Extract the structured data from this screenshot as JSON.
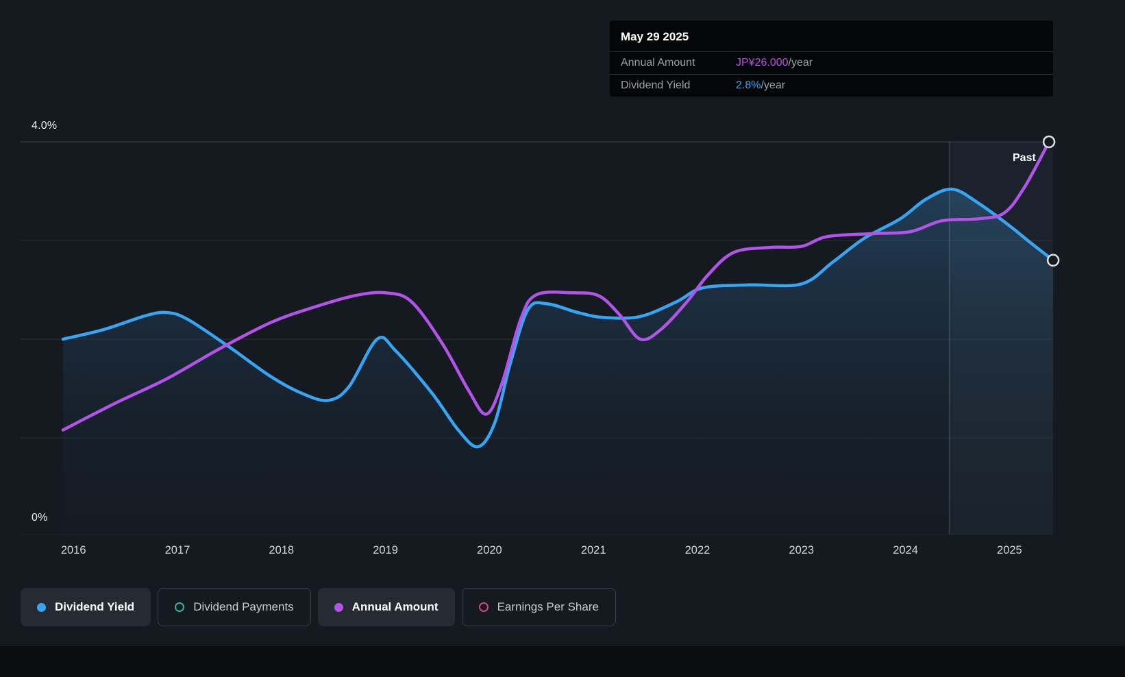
{
  "panel": {
    "background": "#151a21",
    "accent_blue": "#38a5f3",
    "accent_purple": "#b254e8"
  },
  "tooltip": {
    "date": "May 29 2025",
    "rows": [
      {
        "label": "Annual Amount",
        "value": "JP¥26.000",
        "suffix": "/year",
        "color": "#b254e8"
      },
      {
        "label": "Dividend Yield",
        "value": "2.8%",
        "suffix": "/year",
        "color": "#38a5f3"
      }
    ]
  },
  "axes": {
    "y_top_label": "4.0%",
    "y_bottom_label": "0%",
    "past_label": "Past"
  },
  "chart_data": {
    "type": "line",
    "title": "",
    "x_ticks": [
      2016,
      2017,
      2018,
      2019,
      2020,
      2021,
      2022,
      2023,
      2024,
      2025
    ],
    "y_axis": {
      "unit": "%",
      "range": [
        0,
        4
      ],
      "shown_ticks": [
        "4.0%",
        "0%"
      ]
    },
    "gridline_pcts": [
      1,
      2,
      3,
      4
    ],
    "grid": true,
    "legend_position": "bottom",
    "past_divider_year": 2024.42,
    "series": [
      {
        "name": "Dividend Yield",
        "color": "#38a5f3",
        "unit": "percent",
        "area": true,
        "latest_label": "2.8%/year",
        "points": [
          [
            2015.9,
            2.0
          ],
          [
            2016.3,
            2.1
          ],
          [
            2016.7,
            2.24
          ],
          [
            2016.9,
            2.27
          ],
          [
            2017.1,
            2.2
          ],
          [
            2017.5,
            1.92
          ],
          [
            2017.9,
            1.62
          ],
          [
            2018.2,
            1.45
          ],
          [
            2018.45,
            1.38
          ],
          [
            2018.65,
            1.52
          ],
          [
            2018.92,
            2.0
          ],
          [
            2019.1,
            1.88
          ],
          [
            2019.45,
            1.45
          ],
          [
            2019.7,
            1.08
          ],
          [
            2019.89,
            0.91
          ],
          [
            2020.05,
            1.15
          ],
          [
            2020.2,
            1.75
          ],
          [
            2020.37,
            2.3
          ],
          [
            2020.55,
            2.36
          ],
          [
            2020.85,
            2.27
          ],
          [
            2021.1,
            2.22
          ],
          [
            2021.45,
            2.23
          ],
          [
            2021.8,
            2.38
          ],
          [
            2022.05,
            2.52
          ],
          [
            2022.5,
            2.55
          ],
          [
            2023.0,
            2.56
          ],
          [
            2023.3,
            2.78
          ],
          [
            2023.6,
            3.02
          ],
          [
            2023.95,
            3.22
          ],
          [
            2024.2,
            3.42
          ],
          [
            2024.45,
            3.52
          ],
          [
            2024.7,
            3.38
          ],
          [
            2025.0,
            3.15
          ],
          [
            2025.2,
            2.98
          ],
          [
            2025.42,
            2.8
          ]
        ]
      },
      {
        "name": "Annual Amount",
        "color": "#b254e8",
        "unit": "plotted on hidden scale (0-4 chart units); latest value JP¥26.000/year",
        "area": false,
        "latest_label": "JP¥26.000/year",
        "points": [
          [
            2015.9,
            1.08
          ],
          [
            2016.4,
            1.35
          ],
          [
            2016.9,
            1.6
          ],
          [
            2017.4,
            1.9
          ],
          [
            2017.9,
            2.17
          ],
          [
            2018.3,
            2.32
          ],
          [
            2018.7,
            2.44
          ],
          [
            2019.0,
            2.47
          ],
          [
            2019.25,
            2.38
          ],
          [
            2019.55,
            1.95
          ],
          [
            2019.8,
            1.48
          ],
          [
            2019.97,
            1.24
          ],
          [
            2020.12,
            1.55
          ],
          [
            2020.3,
            2.2
          ],
          [
            2020.45,
            2.45
          ],
          [
            2020.8,
            2.47
          ],
          [
            2021.05,
            2.44
          ],
          [
            2021.25,
            2.25
          ],
          [
            2021.45,
            2.0
          ],
          [
            2021.65,
            2.1
          ],
          [
            2021.9,
            2.38
          ],
          [
            2022.1,
            2.65
          ],
          [
            2022.35,
            2.88
          ],
          [
            2022.7,
            2.93
          ],
          [
            2023.0,
            2.94
          ],
          [
            2023.25,
            3.04
          ],
          [
            2023.7,
            3.07
          ],
          [
            2024.05,
            3.09
          ],
          [
            2024.35,
            3.2
          ],
          [
            2024.7,
            3.22
          ],
          [
            2024.95,
            3.28
          ],
          [
            2025.15,
            3.55
          ],
          [
            2025.38,
            4.0
          ]
        ]
      }
    ]
  },
  "legend": {
    "items": [
      {
        "label": "Dividend Yield",
        "color": "#38a5f3",
        "marker": "dot",
        "active": true
      },
      {
        "label": "Dividend Payments",
        "color": "#2cb5a2",
        "marker": "ring",
        "active": false
      },
      {
        "label": "Annual Amount",
        "color": "#b254e8",
        "marker": "dot",
        "active": true
      },
      {
        "label": "Earnings Per Share",
        "color": "#d84484",
        "marker": "ring",
        "active": false
      }
    ]
  }
}
